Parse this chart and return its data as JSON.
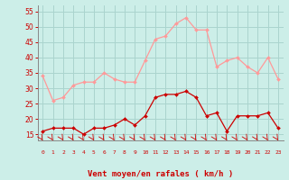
{
  "hours": [
    0,
    1,
    2,
    3,
    4,
    5,
    6,
    7,
    8,
    9,
    10,
    11,
    12,
    13,
    14,
    15,
    16,
    17,
    18,
    19,
    20,
    21,
    22,
    23
  ],
  "vent_moyen": [
    16,
    17,
    17,
    17,
    15,
    17,
    17,
    18,
    20,
    18,
    21,
    27,
    28,
    28,
    29,
    27,
    21,
    22,
    16,
    21,
    21,
    21,
    22,
    17
  ],
  "rafales": [
    34,
    26,
    27,
    31,
    32,
    32,
    35,
    33,
    32,
    32,
    39,
    46,
    47,
    51,
    53,
    49,
    49,
    37,
    39,
    40,
    37,
    35,
    40,
    33
  ],
  "bg_color": "#cceee8",
  "grid_color": "#aad4ce",
  "line_moyen_color": "#cc0000",
  "line_rafales_color": "#ff9999",
  "xlabel": "Vent moyen/en rafales ( km/h )",
  "xlabel_color": "#cc0000",
  "tick_color": "#cc0000",
  "arrow_color": "#cc0000",
  "ylim": [
    13,
    57
  ],
  "yticks": [
    15,
    20,
    25,
    30,
    35,
    40,
    45,
    50,
    55
  ],
  "xlim": [
    -0.5,
    23.5
  ]
}
